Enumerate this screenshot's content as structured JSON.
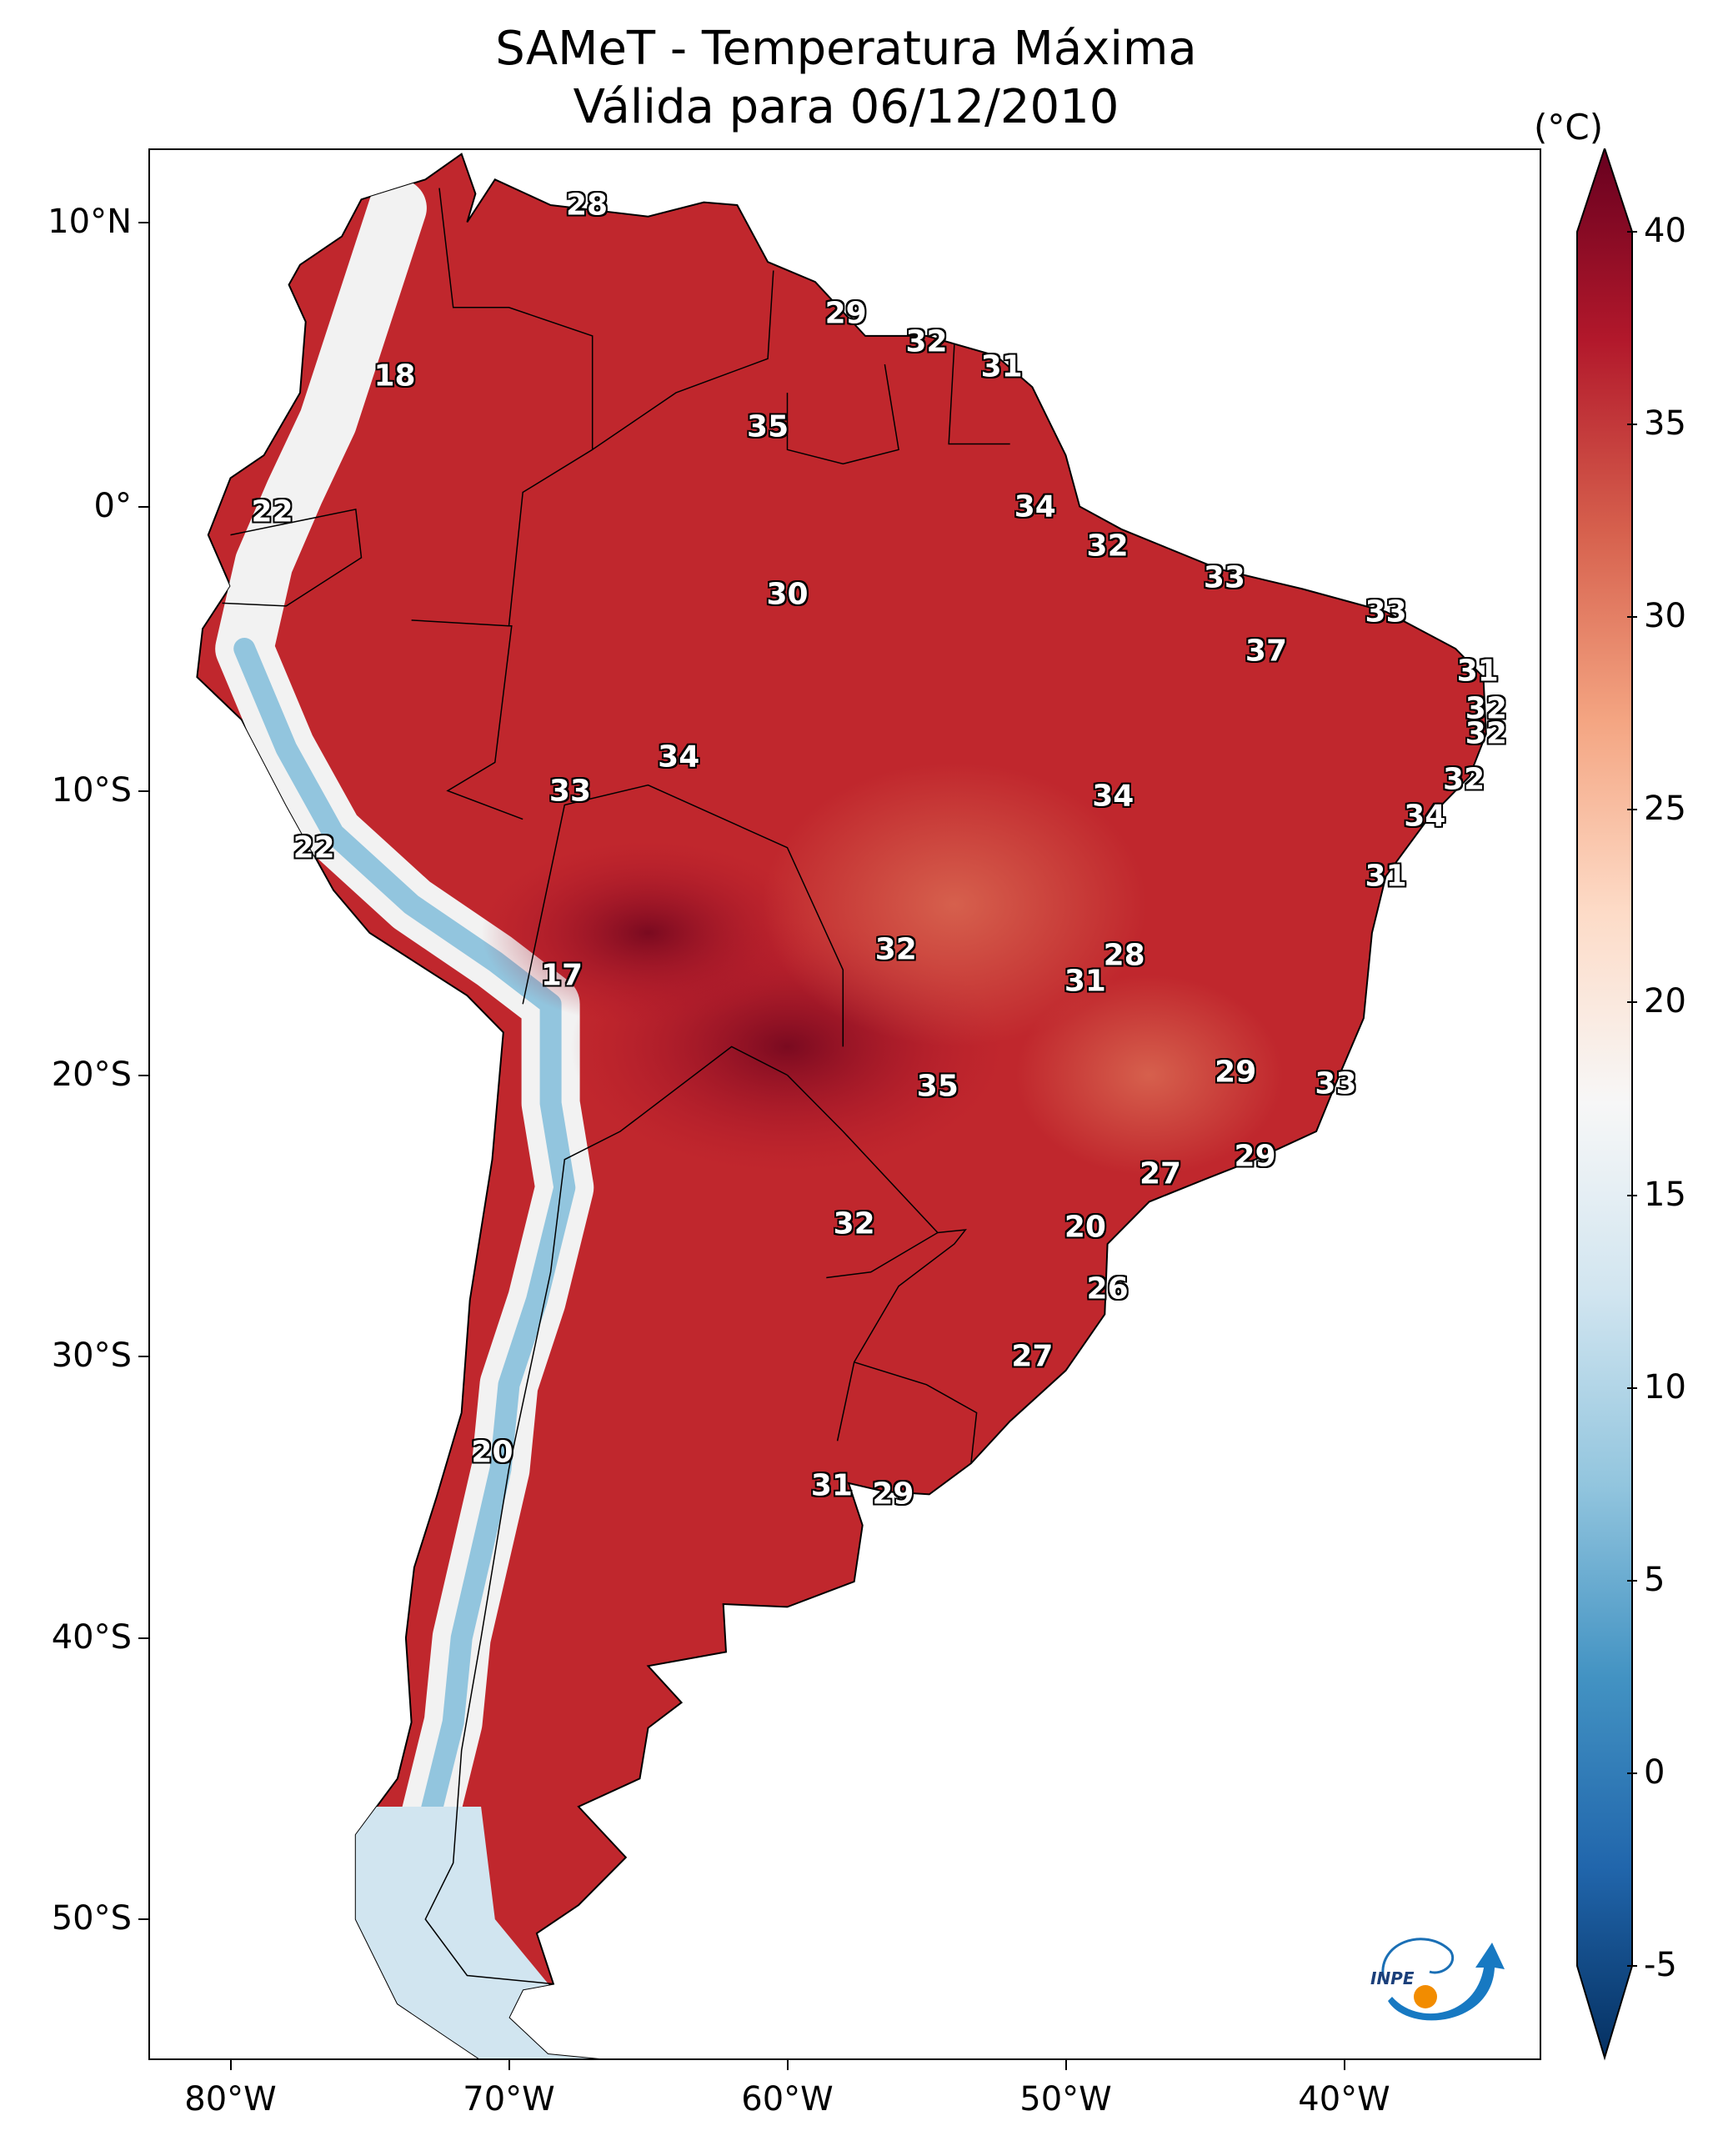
{
  "title": {
    "line1": "SAMeT - Temperatura Máxima",
    "line2": "Válida para 06/12/2010"
  },
  "colorbar": {
    "unit": "(°C)",
    "ticks": [
      "40",
      "35",
      "30",
      "25",
      "20",
      "15",
      "10",
      "5",
      "0",
      "-5"
    ],
    "range": [
      -5,
      40
    ],
    "colors": [
      "#053061",
      "#2166ac",
      "#4393c3",
      "#92c5de",
      "#d1e5f0",
      "#f7f7f7",
      "#fddbc7",
      "#f4a582",
      "#d6604d",
      "#b2182b",
      "#67001f"
    ]
  },
  "axes": {
    "lon_labels": [
      "80°W",
      "70°W",
      "60°W",
      "50°W",
      "40°W"
    ],
    "lat_labels": [
      "10°N",
      "0°",
      "10°S",
      "20°S",
      "30°S",
      "40°S",
      "50°S"
    ]
  },
  "logo": {
    "text": "INPE"
  },
  "cities": [
    {
      "label": "28",
      "lon": -67.2,
      "lat": 10.6
    },
    {
      "label": "29",
      "lon": -57.9,
      "lat": 6.8
    },
    {
      "label": "32",
      "lon": -55.0,
      "lat": 5.8
    },
    {
      "label": "31",
      "lon": -52.3,
      "lat": 4.9
    },
    {
      "label": "18",
      "lon": -74.1,
      "lat": 4.6
    },
    {
      "label": "35",
      "lon": -60.7,
      "lat": 2.8
    },
    {
      "label": "34",
      "lon": -51.1,
      "lat": 0.0
    },
    {
      "label": "22",
      "lon": -78.5,
      "lat": -0.2
    },
    {
      "label": "32",
      "lon": -48.5,
      "lat": -1.4
    },
    {
      "label": "33",
      "lon": -44.3,
      "lat": -2.5
    },
    {
      "label": "30",
      "lon": -60.0,
      "lat": -3.1
    },
    {
      "label": "33",
      "lon": -38.5,
      "lat": -3.7
    },
    {
      "label": "37",
      "lon": -42.8,
      "lat": -5.1
    },
    {
      "label": "31",
      "lon": -35.2,
      "lat": -5.8
    },
    {
      "label": "32",
      "lon": -34.9,
      "lat": -7.1
    },
    {
      "label": "32",
      "lon": -34.9,
      "lat": -8.0
    },
    {
      "label": "34",
      "lon": -63.9,
      "lat": -8.8
    },
    {
      "label": "32",
      "lon": -35.7,
      "lat": -9.6
    },
    {
      "label": "33",
      "lon": -67.8,
      "lat": -10.0
    },
    {
      "label": "34",
      "lon": -48.3,
      "lat": -10.2
    },
    {
      "label": "34",
      "lon": -37.1,
      "lat": -10.9
    },
    {
      "label": "22",
      "lon": -77.0,
      "lat": -12.0
    },
    {
      "label": "31",
      "lon": -38.5,
      "lat": -13.0
    },
    {
      "label": "32",
      "lon": -56.1,
      "lat": -15.6
    },
    {
      "label": "28",
      "lon": -47.9,
      "lat": -15.8
    },
    {
      "label": "17",
      "lon": -68.1,
      "lat": -16.5
    },
    {
      "label": "31",
      "lon": -49.3,
      "lat": -16.7
    },
    {
      "label": "29",
      "lon": -43.9,
      "lat": -19.9
    },
    {
      "label": "33",
      "lon": -40.3,
      "lat": -20.3
    },
    {
      "label": "35",
      "lon": -54.6,
      "lat": -20.4
    },
    {
      "label": "29",
      "lon": -43.2,
      "lat": -22.9
    },
    {
      "label": "27",
      "lon": -46.6,
      "lat": -23.5
    },
    {
      "label": "20",
      "lon": -49.3,
      "lat": -25.4
    },
    {
      "label": "32",
      "lon": -57.6,
      "lat": -25.3
    },
    {
      "label": "26",
      "lon": -48.5,
      "lat": -27.6
    },
    {
      "label": "27",
      "lon": -51.2,
      "lat": -30.0
    },
    {
      "label": "20",
      "lon": -70.6,
      "lat": -33.4
    },
    {
      "label": "31",
      "lon": -58.4,
      "lat": -34.6
    },
    {
      "label": "29",
      "lon": -56.2,
      "lat": -34.9
    }
  ]
}
